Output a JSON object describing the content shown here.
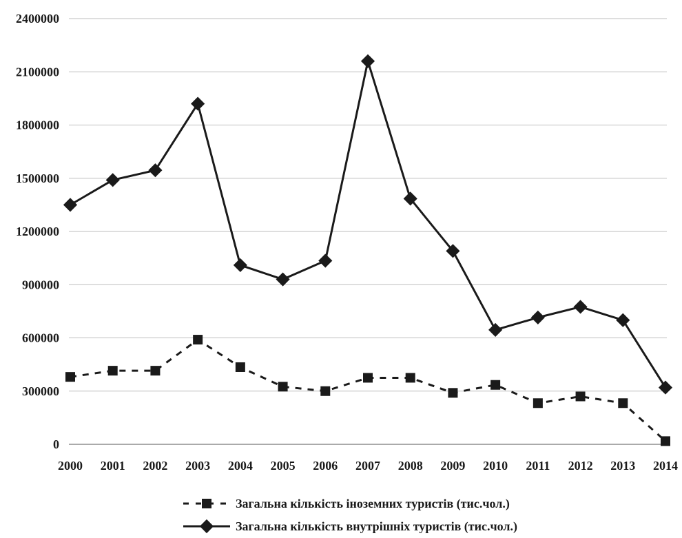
{
  "chart_data": {
    "type": "line",
    "title": "",
    "xlabel": "",
    "ylabel": "",
    "x": [
      "2000",
      "2001",
      "2002",
      "2003",
      "2004",
      "2005",
      "2006",
      "2007",
      "2008",
      "2009",
      "2010",
      "2011",
      "2012",
      "2013",
      "2014"
    ],
    "ylim": [
      0,
      2400000
    ],
    "yticks": [
      0,
      300000,
      600000,
      900000,
      1200000,
      1500000,
      1800000,
      2100000,
      2400000
    ],
    "grid": true,
    "legend_position": "bottom",
    "series": [
      {
        "name": "Загальна кількість іноземних туристів (тис.чол.)",
        "marker": "square",
        "line_style": "dashed",
        "color": "#1a1a1a",
        "values": [
          380000,
          415000,
          415000,
          590000,
          435000,
          325000,
          300000,
          375000,
          375000,
          290000,
          335000,
          232000,
          270000,
          232000,
          18000
        ]
      },
      {
        "name": "Загальна кількість внутрішніх туристів (тис.чол.)",
        "marker": "diamond",
        "line_style": "solid",
        "color": "#1a1a1a",
        "values": [
          1350000,
          1490000,
          1545000,
          1920000,
          1010000,
          930000,
          1035000,
          2160000,
          1385000,
          1090000,
          645000,
          715000,
          775000,
          700000,
          320000
        ]
      }
    ]
  }
}
